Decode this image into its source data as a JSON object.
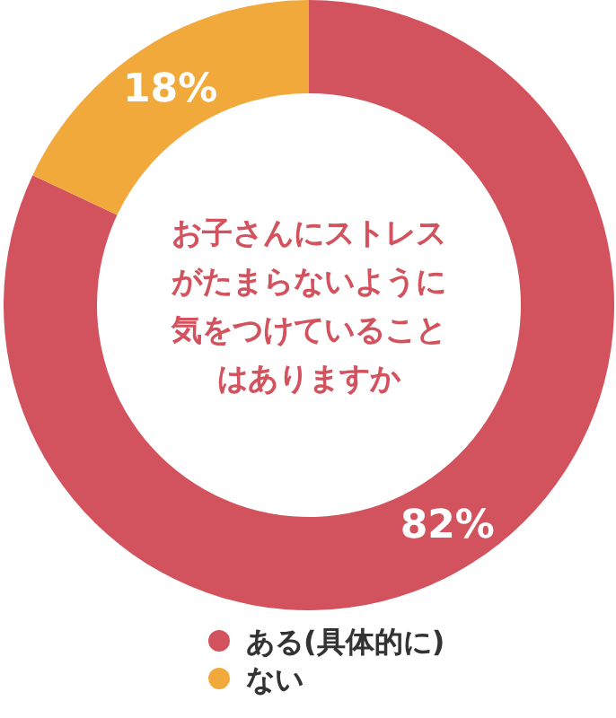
{
  "chart_data": {
    "type": "donut",
    "title": "お子さんにストレスがたまらないように気をつけていることはありますか",
    "categories": [
      "ある(具体的に)",
      "ない"
    ],
    "values": [
      82,
      18
    ],
    "colors": [
      "#d2525e",
      "#f2a93b"
    ],
    "value_labels": [
      "82%",
      "18%"
    ],
    "legend": "bottom"
  }
}
